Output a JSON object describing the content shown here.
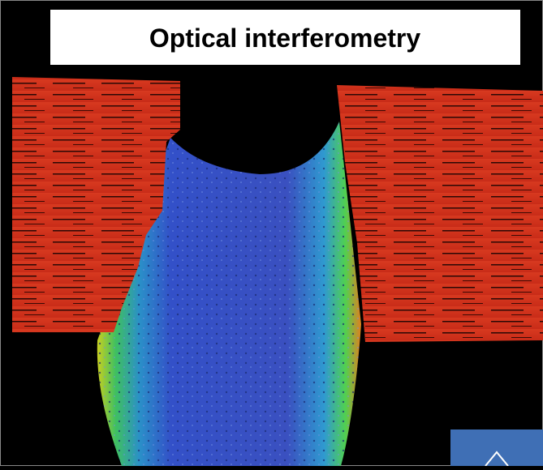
{
  "header": {
    "title": "Optical interferometry"
  }
}
